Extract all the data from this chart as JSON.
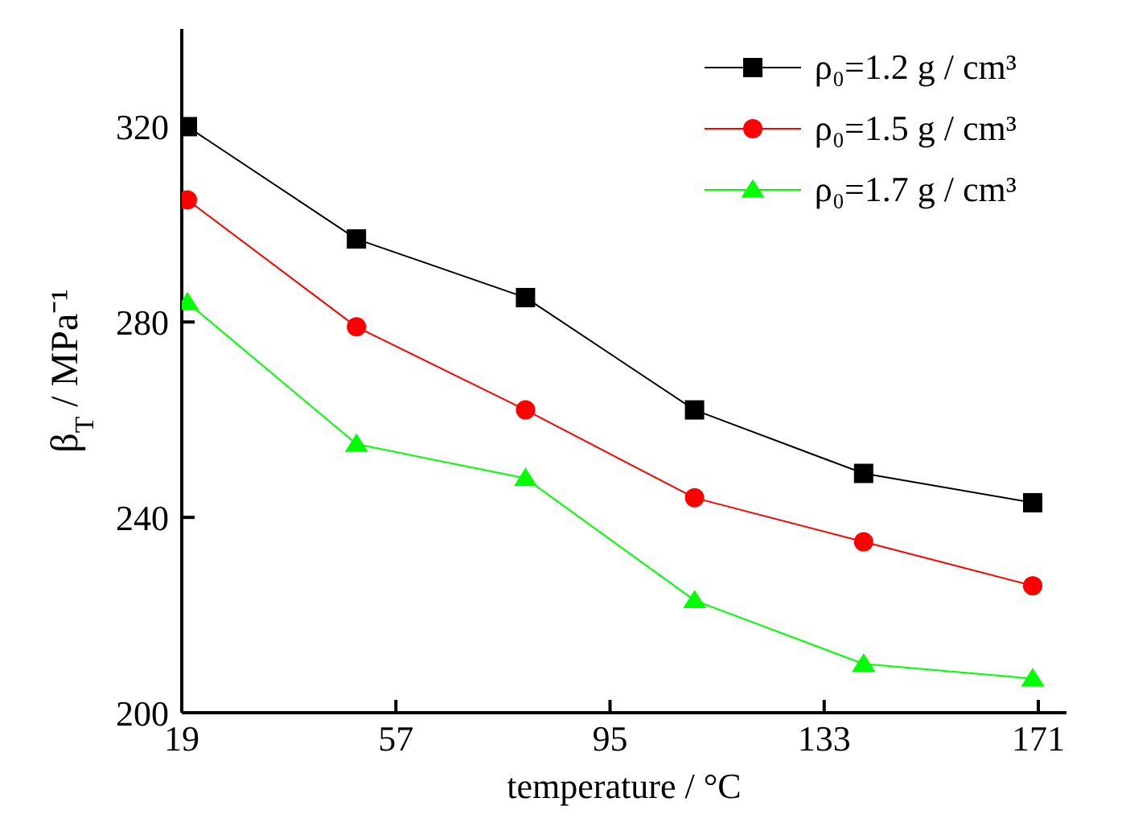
{
  "chart_data": {
    "type": "line",
    "xlabel": "temperature / °C",
    "ylabel": "β$_{T}$ / MPa⁻¹",
    "x": [
      20,
      50,
      80,
      110,
      140,
      170
    ],
    "xlim": [
      19,
      176
    ],
    "xticks": [
      19,
      57,
      95,
      133,
      171
    ],
    "ylim": [
      200,
      340
    ],
    "yticks": [
      200,
      240,
      280,
      320
    ],
    "grid": false,
    "legend": "top right",
    "line_style": "solid",
    "series": [
      {
        "name": "ρ₀=1.2 g / cm³",
        "color": "#000000",
        "marker": "square",
        "values": [
          320,
          297,
          285,
          262,
          249,
          243
        ]
      },
      {
        "name": "ρ₀=1.5 g / cm³",
        "color": "#ff0000",
        "marker": "circle",
        "values": [
          305,
          279,
          262,
          244,
          235,
          226
        ]
      },
      {
        "name": "ρ₀=1.7 g / cm³",
        "color": "#00ff00",
        "marker": "triangle",
        "values": [
          284,
          255,
          248,
          223,
          210,
          207
        ]
      }
    ]
  }
}
